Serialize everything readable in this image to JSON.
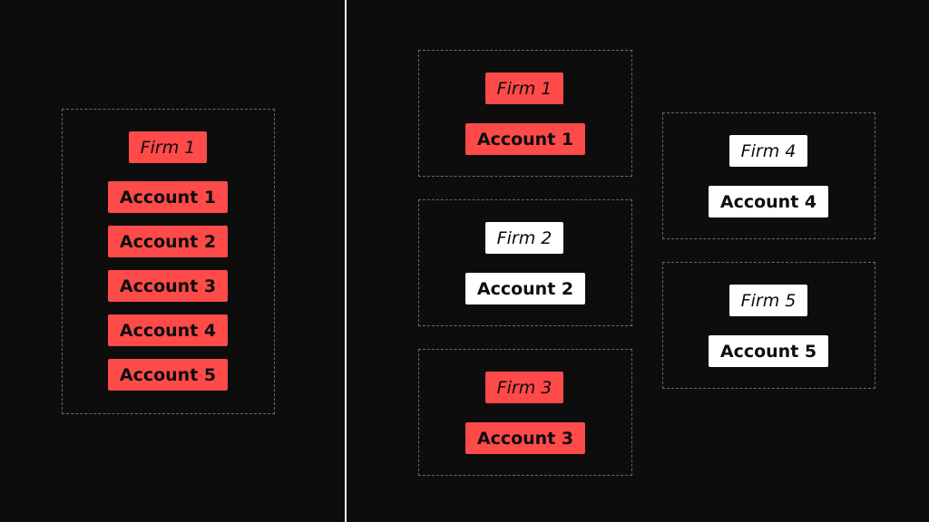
{
  "colors": {
    "accent": "#ff4a4a",
    "neutral": "#ffffff",
    "background": "#0d0d0d"
  },
  "left": {
    "firm": "Firm 1",
    "accounts": [
      "Account 1",
      "Account 2",
      "Account 3",
      "Account 4",
      "Account 5"
    ]
  },
  "right": {
    "groups": [
      {
        "firm": "Firm 1",
        "account": "Account 1",
        "highlighted": true
      },
      {
        "firm": "Firm 2",
        "account": "Account 2",
        "highlighted": false
      },
      {
        "firm": "Firm 3",
        "account": "Account 3",
        "highlighted": true
      },
      {
        "firm": "Firm 4",
        "account": "Account 4",
        "highlighted": false
      },
      {
        "firm": "Firm 5",
        "account": "Account 5",
        "highlighted": false
      }
    ]
  }
}
